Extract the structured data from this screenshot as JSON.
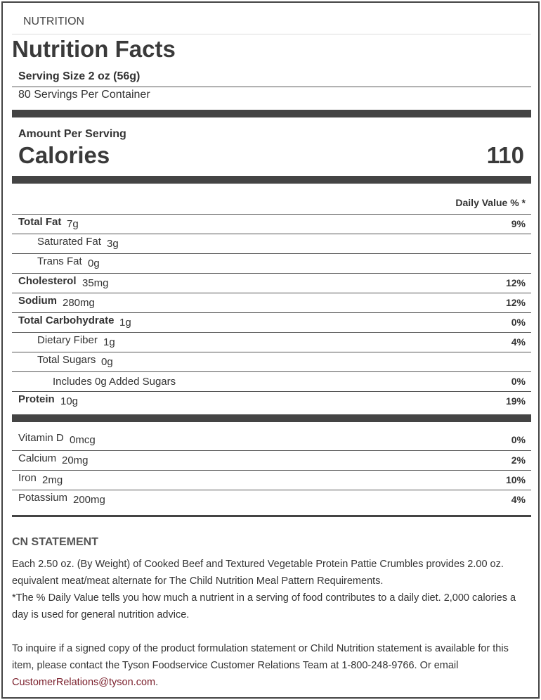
{
  "section_label": "NUTRITION",
  "title": "Nutrition Facts",
  "serving_size": "Serving Size 2 oz (56g)",
  "servings_per_container": "80 Servings Per Container",
  "amount_per_serving": "Amount Per Serving",
  "calories_label": "Calories",
  "calories_value": "110",
  "daily_value_header": "Daily Value % *",
  "nutrients": [
    {
      "label": "Total Fat",
      "amount": "7g",
      "dv": "9%",
      "bold": true,
      "indent": 0
    },
    {
      "label": "Saturated Fat",
      "amount": "3g",
      "dv": "",
      "bold": false,
      "indent": 1
    },
    {
      "label": "Trans Fat",
      "amount": "0g",
      "dv": "",
      "bold": false,
      "indent": 1
    },
    {
      "label": "Cholesterol",
      "amount": "35mg",
      "dv": "12%",
      "bold": true,
      "indent": 0
    },
    {
      "label": "Sodium",
      "amount": "280mg",
      "dv": "12%",
      "bold": true,
      "indent": 0
    },
    {
      "label": "Total Carbohydrate",
      "amount": "1g",
      "dv": "0%",
      "bold": true,
      "indent": 0
    },
    {
      "label": "Dietary Fiber",
      "amount": "1g",
      "dv": "4%",
      "bold": false,
      "indent": 1
    },
    {
      "label": "Total Sugars",
      "amount": "0g",
      "dv": "",
      "bold": false,
      "indent": 1
    },
    {
      "label": "Includes 0g Added Sugars",
      "amount": "",
      "dv": "0%",
      "bold": false,
      "indent": 2
    },
    {
      "label": "Protein",
      "amount": "10g",
      "dv": "19%",
      "bold": true,
      "indent": 0
    }
  ],
  "vitamins": [
    {
      "label": "Vitamin D",
      "amount": "0mcg",
      "dv": "0%"
    },
    {
      "label": "Calcium",
      "amount": "20mg",
      "dv": "2%"
    },
    {
      "label": "Iron",
      "amount": "2mg",
      "dv": "10%"
    },
    {
      "label": "Potassium",
      "amount": "200mg",
      "dv": "4%"
    }
  ],
  "cn_heading": "CN STATEMENT",
  "cn_text": "Each 2.50 oz. (By Weight) of Cooked Beef and Textured Vegetable Protein Pattie Crumbles provides 2.00 oz. equivalent meat/meat alternate for The Child Nutrition Meal Pattern Requirements.",
  "dv_note": "*The % Daily Value tells you how much a nutrient in a serving of food contributes to a daily diet. 2,000 calories a day is used for general nutrition advice.",
  "inquiry_text": "To inquire if a signed copy of the product formulation statement or Child Nutrition statement is available for this item, please contact the Tyson Foodservice Customer Relations Team at 1-800-248-9766. Or email ",
  "email": "CustomerRelations@tyson.com",
  "inquiry_end": ".",
  "colors": {
    "link": "#7a1f2b",
    "bars": "#444444"
  }
}
